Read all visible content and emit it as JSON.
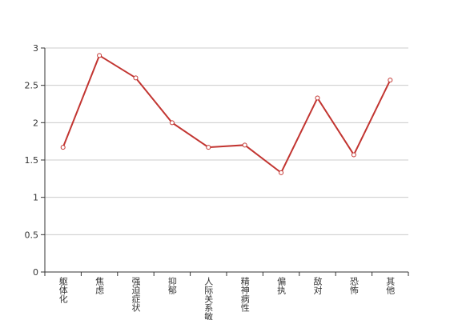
{
  "chart_data": {
    "type": "line",
    "categories": [
      "躯体化",
      "焦虑",
      "强迫症状",
      "抑郁",
      "人际关系敏感",
      "精神病性",
      "偏执",
      "敌对",
      "恐怖",
      "其他"
    ],
    "values": [
      1.67,
      2.9,
      2.6,
      2.0,
      1.67,
      1.7,
      1.33,
      2.33,
      1.57,
      2.57
    ],
    "color": "#c23531",
    "ylim": [
      0,
      3
    ],
    "yticks": [
      0,
      0.5,
      1,
      1.5,
      2,
      2.5,
      3
    ],
    "grid": true
  }
}
